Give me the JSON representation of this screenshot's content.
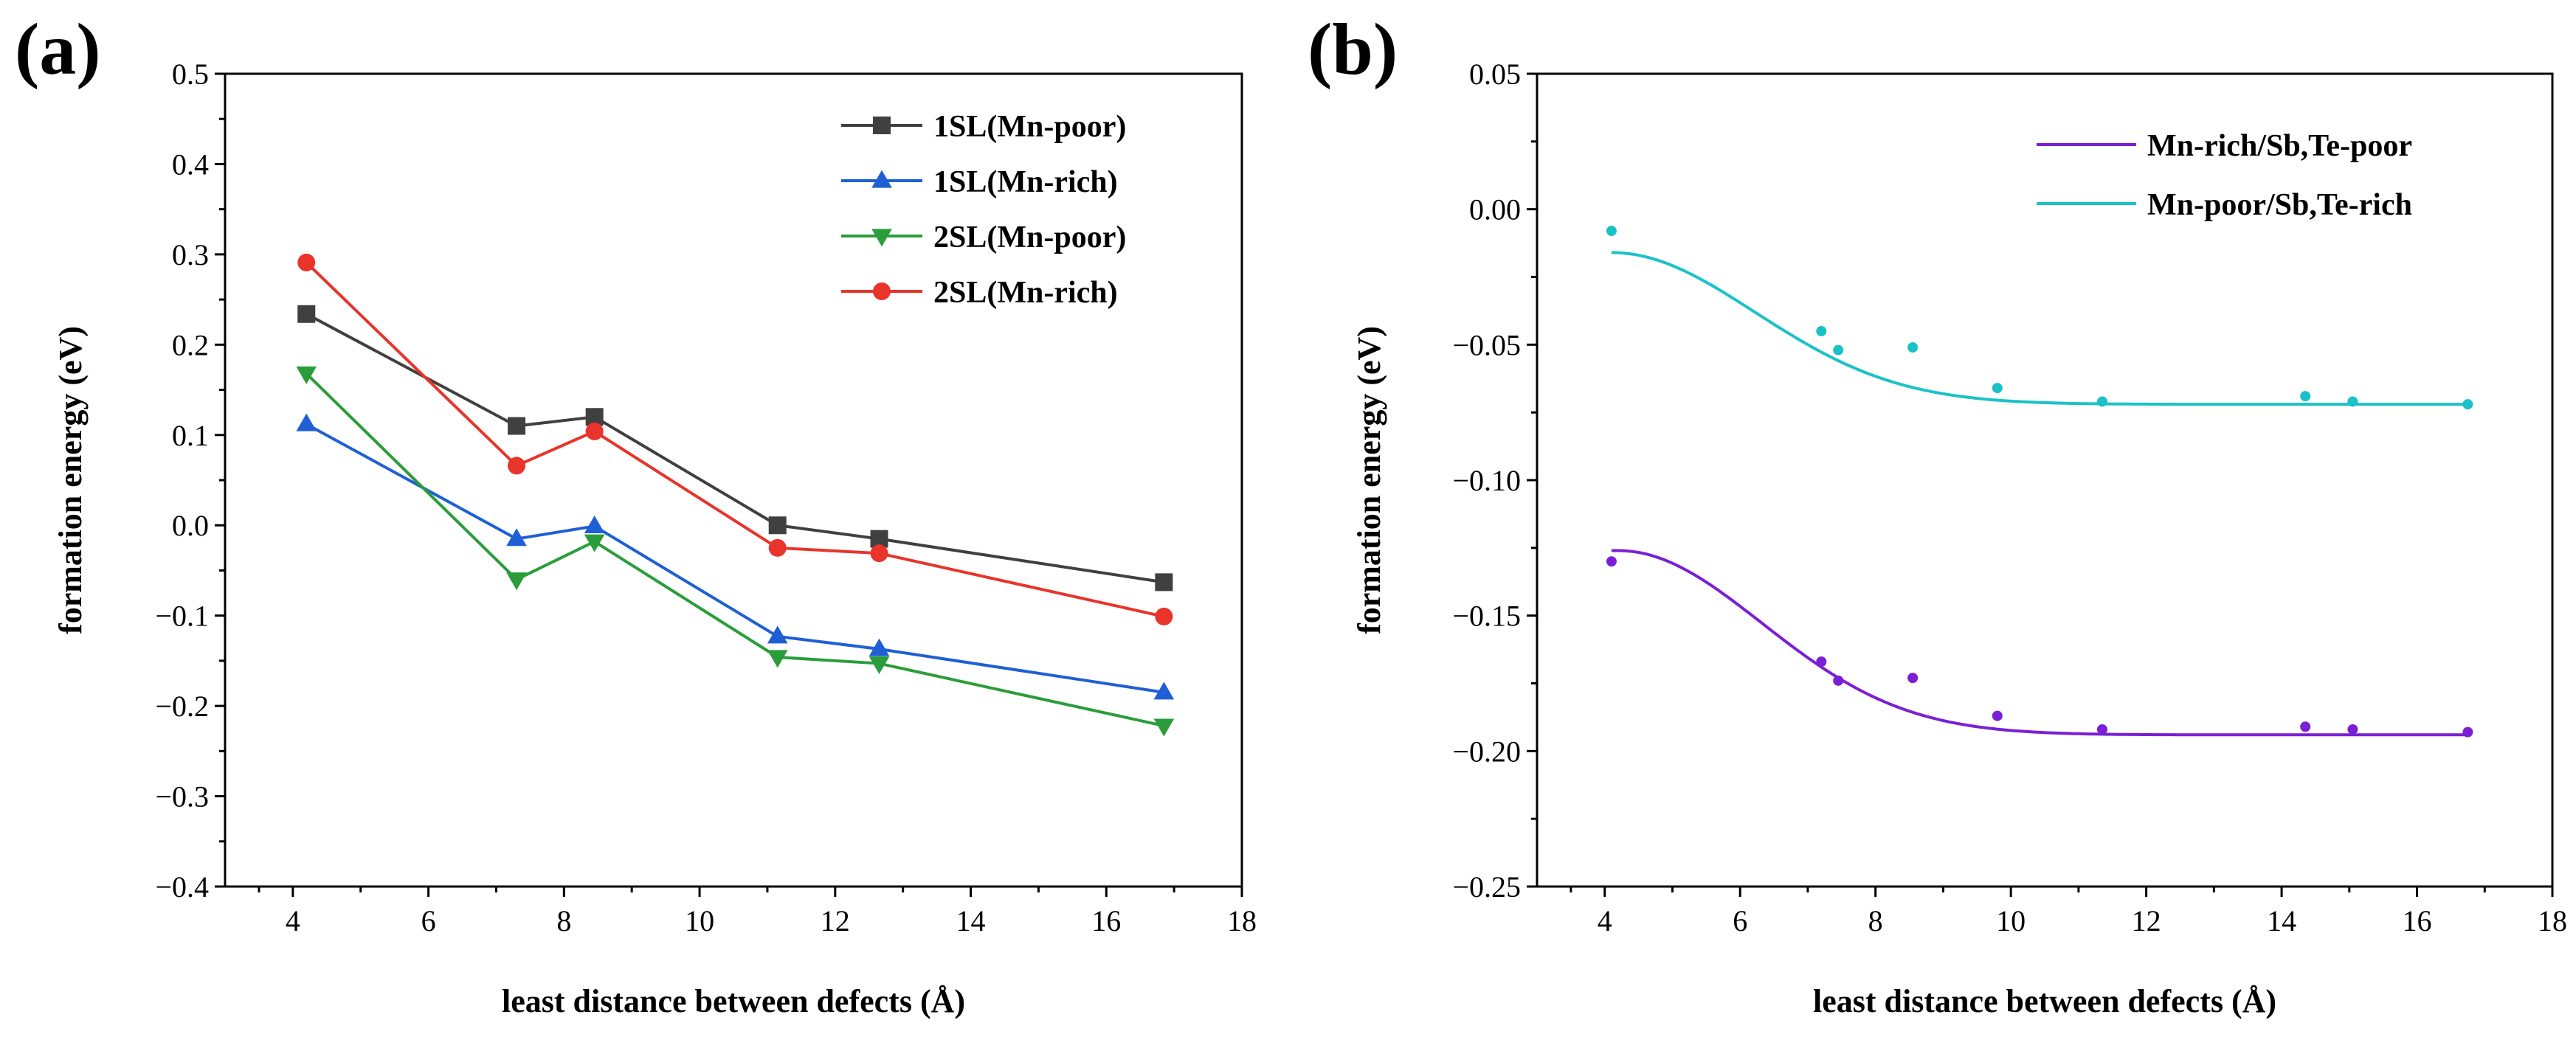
{
  "chart_data": [
    {
      "type": "line",
      "panel_label": "(a)",
      "xlabel": "least distance between defects (Å)",
      "ylabel": "formation energy (eV)",
      "xlim": [
        3,
        18
      ],
      "ylim": [
        -0.4,
        0.5
      ],
      "xticks": [
        4,
        6,
        8,
        10,
        12,
        14,
        16,
        18
      ],
      "xtick_labels": [
        "4",
        "6",
        "8",
        "10",
        "12",
        "14",
        "16",
        "18"
      ],
      "yticks": [
        -0.4,
        -0.3,
        -0.2,
        -0.1,
        0.0,
        0.1,
        0.2,
        0.3,
        0.4,
        0.5
      ],
      "ytick_labels": [
        "−0.4",
        "−0.3",
        "−0.2",
        "−0.1",
        "0.0",
        "0.1",
        "0.2",
        "0.3",
        "0.4",
        "0.5"
      ],
      "legend_position": "top-right",
      "series": [
        {
          "name": "1SL(Mn-poor)",
          "color": "#404040",
          "marker": "square",
          "x": [
            4.2,
            7.3,
            8.45,
            11.15,
            12.65,
            16.85
          ],
          "y": [
            0.234,
            0.11,
            0.12,
            0.0,
            -0.015,
            -0.063
          ]
        },
        {
          "name": "1SL(Mn-rich)",
          "color": "#1f5fd6",
          "marker": "triangle-up",
          "x": [
            4.2,
            7.3,
            8.45,
            11.15,
            12.65,
            16.85
          ],
          "y": [
            0.112,
            -0.015,
            -0.001,
            -0.123,
            -0.137,
            -0.185
          ]
        },
        {
          "name": "2SL(Mn-poor)",
          "color": "#2a9d3a",
          "marker": "triangle-down",
          "x": [
            4.2,
            7.3,
            8.45,
            11.15,
            12.65,
            16.85
          ],
          "y": [
            0.168,
            -0.06,
            -0.018,
            -0.146,
            -0.153,
            -0.222
          ]
        },
        {
          "name": "2SL(Mn-rich)",
          "color": "#e8342b",
          "marker": "circle",
          "x": [
            4.2,
            7.3,
            8.45,
            11.15,
            12.65,
            16.85
          ],
          "y": [
            0.291,
            0.066,
            0.104,
            -0.025,
            -0.031,
            -0.101
          ]
        }
      ]
    },
    {
      "type": "scatter",
      "panel_label": "(b)",
      "xlabel": "least distance between defects (Å)",
      "ylabel": "formation energy (eV)",
      "xlim": [
        3,
        18
      ],
      "ylim": [
        -0.25,
        0.05
      ],
      "xticks": [
        4,
        6,
        8,
        10,
        12,
        14,
        16,
        18
      ],
      "xtick_labels": [
        "4",
        "6",
        "8",
        "10",
        "12",
        "14",
        "16",
        "18"
      ],
      "yticks": [
        -0.25,
        -0.2,
        -0.15,
        -0.1,
        -0.05,
        0.0,
        0.05
      ],
      "ytick_labels": [
        "−0.25",
        "−0.20",
        "−0.15",
        "−0.10",
        "−0.05",
        "0.00",
        "0.05"
      ],
      "legend_position": "top-right",
      "series": [
        {
          "name": "Mn-rich/Sb,Te-poor",
          "color": "#7a1fd6",
          "x": [
            4.1,
            7.2,
            7.45,
            8.55,
            9.8,
            11.35,
            14.35,
            15.05,
            16.75
          ],
          "y": [
            -0.13,
            -0.167,
            -0.174,
            -0.173,
            -0.187,
            -0.192,
            -0.191,
            -0.192,
            -0.193
          ],
          "fit": {
            "asymptote": -0.194,
            "amplitude": 0.068,
            "peak_x": 4.2,
            "width": 3.0
          }
        },
        {
          "name": "Mn-poor/Sb,Te-rich",
          "color": "#1ac2c8",
          "x": [
            4.1,
            7.2,
            7.45,
            8.55,
            9.8,
            11.35,
            14.35,
            15.05,
            16.75
          ],
          "y": [
            -0.008,
            -0.045,
            -0.052,
            -0.051,
            -0.066,
            -0.071,
            -0.069,
            -0.071,
            -0.072
          ],
          "fit": {
            "asymptote": -0.072,
            "amplitude": 0.056,
            "peak_x": 4.1,
            "width": 3.0
          }
        }
      ]
    }
  ]
}
